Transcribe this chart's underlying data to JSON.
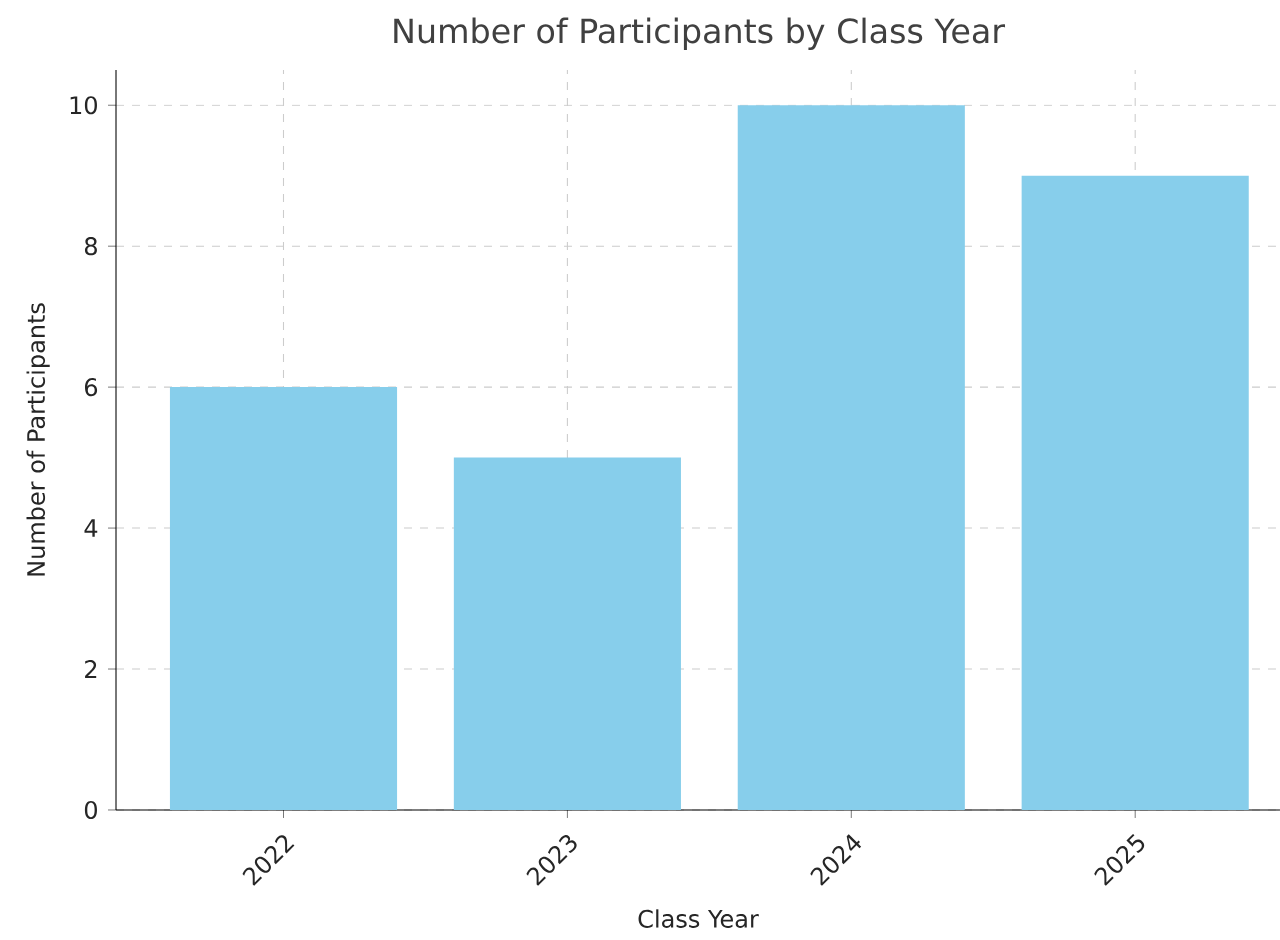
{
  "chart_data": {
    "type": "bar",
    "title": "Number of Participants by Class Year",
    "xlabel": "Class Year",
    "ylabel": "Number of Participants",
    "categories": [
      "2022",
      "2023",
      "2024",
      "2025"
    ],
    "values": [
      6,
      5,
      10,
      9
    ],
    "color": "#87ceeb",
    "ylim": [
      0,
      10.5
    ],
    "yticks": [
      0,
      2,
      4,
      6,
      8,
      10
    ],
    "grid": true
  }
}
